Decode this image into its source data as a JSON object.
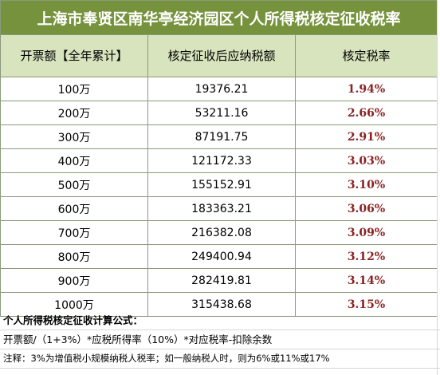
{
  "table": {
    "title": "上海市奉贤区南华亭经济园区个人所得税核定征收税率",
    "headers": [
      "开票额【全年累计】",
      "核定征收后应纳税额",
      "核定税率"
    ],
    "rows": [
      {
        "amount": "100万",
        "tax": "19376.21",
        "rate": "1.94%"
      },
      {
        "amount": "200万",
        "tax": "53211.16",
        "rate": "2.66%"
      },
      {
        "amount": "300万",
        "tax": "87191.75",
        "rate": "2.91%"
      },
      {
        "amount": "400万",
        "tax": "121172.33",
        "rate": "3.03%"
      },
      {
        "amount": "500万",
        "tax": "155152.91",
        "rate": "3.10%"
      },
      {
        "amount": "600万",
        "tax": "183363.21",
        "rate": "3.06%"
      },
      {
        "amount": "700万",
        "tax": "216382.08",
        "rate": "3.09%"
      },
      {
        "amount": "800万",
        "tax": "249400.94",
        "rate": "3.12%"
      },
      {
        "amount": "900万",
        "tax": "282419.81",
        "rate": "3.14%"
      },
      {
        "amount": "1000万",
        "tax": "315438.68",
        "rate": "3.15%"
      }
    ]
  },
  "notes": {
    "formula_title": "个人所得税核定征收计算公式：",
    "formula": "开票额/（1+3%）*应税所得率（10%）*对应税率-扣除余数",
    "remark": "注释：3%为增值税小规模纳税人税率；如一般纳税人时，则为6%或11%或17%"
  },
  "colors": {
    "title_bg": "#76923c",
    "header_bg": "#d7e4bd",
    "rate_text": "#8b2323"
  }
}
